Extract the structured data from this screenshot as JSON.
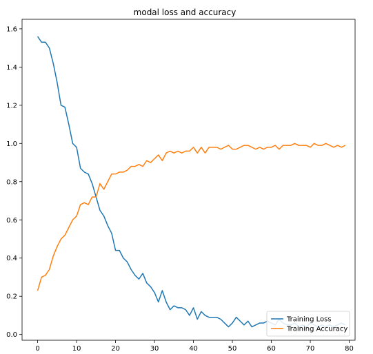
{
  "chart_data": {
    "type": "line",
    "title": "modal loss and accuracy",
    "xlabel": "",
    "ylabel": "",
    "xlim": [
      -4,
      81.5
    ],
    "ylim": [
      -0.03,
      1.65
    ],
    "xticks": [
      0,
      10,
      20,
      30,
      40,
      50,
      60,
      70,
      80
    ],
    "yticks": [
      0.0,
      0.2,
      0.4,
      0.6,
      0.8,
      1.0,
      1.2,
      1.4,
      1.6
    ],
    "xtick_labels": [
      "0",
      "10",
      "20",
      "30",
      "40",
      "50",
      "60",
      "70",
      "80"
    ],
    "ytick_labels": [
      "0.0",
      "0.2",
      "0.4",
      "0.6",
      "0.8",
      "1.0",
      "1.2",
      "1.4",
      "1.6"
    ],
    "grid": false,
    "legend_position": "bottom-right",
    "series": [
      {
        "name": "Training Loss",
        "color": "#1f77b4",
        "x": [
          0,
          1,
          2,
          3,
          4,
          5,
          6,
          7,
          8,
          9,
          10,
          11,
          12,
          13,
          14,
          15,
          16,
          17,
          18,
          19,
          20,
          21,
          22,
          23,
          24,
          25,
          26,
          27,
          28,
          29,
          30,
          31,
          32,
          33,
          34,
          35,
          36,
          37,
          38,
          39,
          40,
          41,
          42,
          43,
          44,
          45,
          46,
          47,
          48,
          49,
          50,
          51,
          52,
          53,
          54,
          55,
          56,
          57,
          58,
          59,
          60,
          61,
          62,
          63,
          64,
          65,
          66,
          67,
          68,
          69,
          70,
          71,
          72,
          73,
          74,
          75,
          76,
          77,
          78,
          79
        ],
        "values": [
          1.56,
          1.53,
          1.53,
          1.5,
          1.42,
          1.32,
          1.2,
          1.19,
          1.1,
          1.0,
          0.98,
          0.87,
          0.85,
          0.84,
          0.79,
          0.72,
          0.65,
          0.62,
          0.57,
          0.53,
          0.44,
          0.44,
          0.4,
          0.38,
          0.34,
          0.31,
          0.29,
          0.32,
          0.27,
          0.25,
          0.22,
          0.17,
          0.23,
          0.17,
          0.13,
          0.15,
          0.14,
          0.14,
          0.13,
          0.1,
          0.14,
          0.08,
          0.12,
          0.1,
          0.09,
          0.09,
          0.09,
          0.08,
          0.06,
          0.04,
          0.06,
          0.09,
          0.07,
          0.05,
          0.07,
          0.04,
          0.05,
          0.06,
          0.06,
          0.07,
          0.06,
          0.05,
          0.08,
          0.06,
          0.05,
          0.05,
          0.06,
          0.04,
          0.05,
          0.04,
          0.06,
          0.05,
          0.04,
          0.05,
          0.04,
          0.05,
          0.04,
          0.05,
          0.06,
          0.05
        ]
      },
      {
        "name": "Training Accuracy",
        "color": "#ff7f0e",
        "x": [
          0,
          1,
          2,
          3,
          4,
          5,
          6,
          7,
          8,
          9,
          10,
          11,
          12,
          13,
          14,
          15,
          16,
          17,
          18,
          19,
          20,
          21,
          22,
          23,
          24,
          25,
          26,
          27,
          28,
          29,
          30,
          31,
          32,
          33,
          34,
          35,
          36,
          37,
          38,
          39,
          40,
          41,
          42,
          43,
          44,
          45,
          46,
          47,
          48,
          49,
          50,
          51,
          52,
          53,
          54,
          55,
          56,
          57,
          58,
          59,
          60,
          61,
          62,
          63,
          64,
          65,
          66,
          67,
          68,
          69,
          70,
          71,
          72,
          73,
          74,
          75,
          76,
          77,
          78,
          79
        ],
        "values": [
          0.23,
          0.3,
          0.31,
          0.34,
          0.41,
          0.46,
          0.5,
          0.52,
          0.56,
          0.6,
          0.62,
          0.68,
          0.69,
          0.68,
          0.72,
          0.72,
          0.79,
          0.76,
          0.8,
          0.84,
          0.84,
          0.85,
          0.85,
          0.86,
          0.88,
          0.88,
          0.89,
          0.88,
          0.91,
          0.9,
          0.92,
          0.94,
          0.91,
          0.95,
          0.96,
          0.95,
          0.96,
          0.95,
          0.96,
          0.96,
          0.98,
          0.95,
          0.98,
          0.95,
          0.98,
          0.98,
          0.98,
          0.97,
          0.98,
          0.99,
          0.97,
          0.97,
          0.98,
          0.99,
          0.99,
          0.98,
          0.97,
          0.98,
          0.97,
          0.98,
          0.98,
          0.99,
          0.97,
          0.99,
          0.99,
          0.99,
          1.0,
          0.99,
          0.99,
          0.99,
          0.98,
          1.0,
          0.99,
          0.99,
          1.0,
          0.99,
          0.98,
          0.99,
          0.98,
          0.99
        ]
      }
    ]
  }
}
